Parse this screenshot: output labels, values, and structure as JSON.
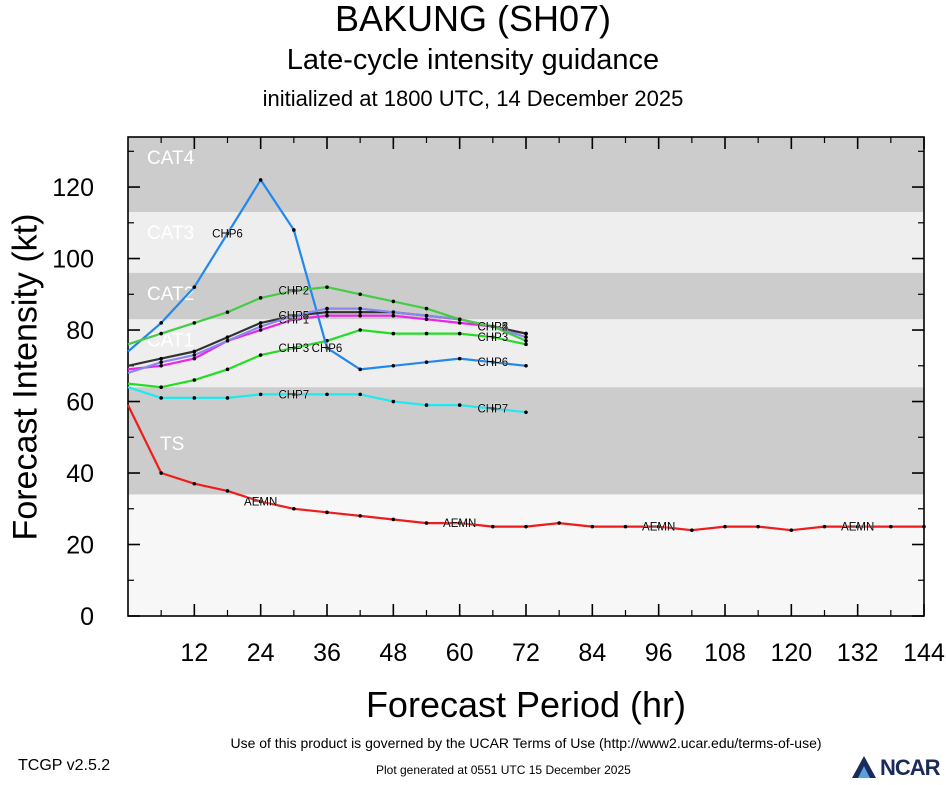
{
  "header": {
    "title": "BAKUNG (SH07)",
    "subtitle": "Late-cycle intensity guidance",
    "initialized": "initialized at 1800 UTC, 14 December 2025"
  },
  "footer": {
    "version": "TCGP v2.5.2",
    "terms": "Use of this product is governed by the UCAR Terms of Use (http://www2.ucar.edu/terms-of-use)",
    "generated": "Plot generated at 0551 UTC   15 December 2025",
    "logo_text": "NCAR"
  },
  "chart_data": {
    "type": "line",
    "xlabel": "Forecast Period (hr)",
    "ylabel": "Forecast Intensity (kt)",
    "xlim": [
      0,
      144
    ],
    "ylim": [
      0,
      134
    ],
    "xticks": [
      12,
      24,
      36,
      48,
      60,
      72,
      84,
      96,
      108,
      120,
      132,
      144
    ],
    "yticks": [
      0,
      20,
      40,
      60,
      80,
      100,
      120
    ],
    "bands": [
      {
        "label": "CAT4",
        "from": 113,
        "to": 134,
        "color": "#cccccc"
      },
      {
        "label": "CAT3",
        "from": 96,
        "to": 113,
        "color": "#eeeeee"
      },
      {
        "label": "CAT2",
        "from": 83,
        "to": 96,
        "color": "#cccccc"
      },
      {
        "label": "CAT1",
        "from": 64,
        "to": 83,
        "color": "#eeeeee"
      },
      {
        "label": "TS",
        "from": 34,
        "to": 64,
        "color": "#cccccc"
      },
      {
        "label": "",
        "from": 0,
        "to": 34,
        "color": "#f7f7f7"
      }
    ],
    "series": [
      {
        "name": "AEMN",
        "color": "#ee1c1c",
        "x": [
          0,
          6,
          12,
          18,
          24,
          30,
          36,
          42,
          48,
          54,
          60,
          66,
          72,
          78,
          84,
          90,
          96,
          102,
          108,
          114,
          120,
          126,
          132,
          138,
          144
        ],
        "y": [
          59,
          40,
          37,
          35,
          32,
          30,
          29,
          28,
          27,
          26,
          26,
          25,
          25,
          26,
          25,
          25,
          25,
          24,
          25,
          25,
          24,
          25,
          25,
          25,
          25
        ],
        "labels_at": [
          24,
          60,
          96,
          132
        ]
      },
      {
        "name": "CHP7",
        "color": "#22e8ee",
        "x": [
          0,
          6,
          12,
          18,
          24,
          30,
          36,
          42,
          48,
          54,
          60,
          66,
          72
        ],
        "y": [
          64,
          61,
          61,
          61,
          62,
          62,
          62,
          62,
          60,
          59,
          59,
          58,
          57
        ],
        "labels_at": [
          30,
          66
        ]
      },
      {
        "name": "CHP3",
        "color": "#22dd22",
        "x": [
          0,
          6,
          12,
          18,
          24,
          30,
          36,
          42,
          48,
          54,
          60,
          66,
          72
        ],
        "y": [
          65,
          64,
          66,
          69,
          73,
          75,
          77,
          80,
          79,
          79,
          79,
          78,
          76
        ],
        "labels_at": [
          30,
          66
        ]
      },
      {
        "name": "CHP6",
        "color": "#2288ee",
        "x": [
          0,
          6,
          12,
          18,
          24,
          30,
          36,
          42,
          48,
          54,
          60,
          66,
          72
        ],
        "y": [
          74,
          82,
          92,
          107,
          122,
          108,
          75,
          69,
          70,
          71,
          72,
          71,
          70
        ],
        "labels_at": [
          18,
          36,
          66
        ]
      },
      {
        "name": "CHP1",
        "color": "#ee22ee",
        "x": [
          0,
          6,
          12,
          18,
          24,
          30,
          36,
          42,
          48,
          54,
          60,
          66,
          72
        ],
        "y": [
          69,
          70,
          72,
          77,
          80,
          83,
          84,
          84,
          84,
          83,
          82,
          81,
          79
        ],
        "labels_at": [
          30,
          66
        ]
      },
      {
        "name": "CHP4",
        "color": "#333333",
        "x": [
          0,
          6,
          12,
          18,
          24,
          30,
          36,
          42,
          48,
          54,
          60,
          66,
          72
        ],
        "y": [
          70,
          72,
          74,
          78,
          82,
          84,
          85,
          85,
          85,
          84,
          83,
          81,
          79
        ],
        "labels_at": [
          30,
          66
        ]
      },
      {
        "name": "CHP5",
        "color": "#8888ee",
        "x": [
          0,
          6,
          12,
          18,
          24,
          30,
          36,
          42,
          48,
          54,
          60,
          66,
          72
        ],
        "y": [
          68,
          71,
          73,
          77,
          81,
          84,
          86,
          86,
          85,
          84,
          83,
          81,
          78
        ],
        "labels_at": [
          30,
          66
        ]
      },
      {
        "name": "CHP2",
        "color": "#44cc44",
        "x": [
          0,
          6,
          12,
          18,
          24,
          30,
          36,
          42,
          48,
          54,
          60,
          66,
          72
        ],
        "y": [
          76,
          79,
          82,
          85,
          89,
          91,
          92,
          90,
          88,
          86,
          83,
          81,
          77
        ],
        "labels_at": [
          30,
          66
        ]
      }
    ]
  }
}
